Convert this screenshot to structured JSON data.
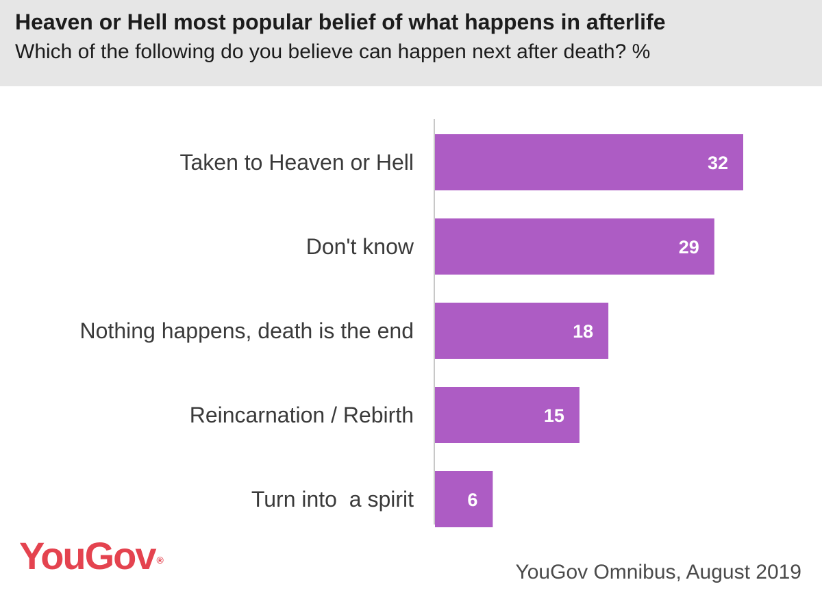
{
  "header": {
    "title": "Heaven or Hell most popular belief of what happens in afterlife",
    "subtitle": "Which of the following do you believe can happen next after death? %"
  },
  "colors": {
    "bar": "#ad5cc4",
    "header_background": "#e6e6e6",
    "logo": "#e4434f",
    "axis_line": "#c8c8c8"
  },
  "chart_data": {
    "type": "bar",
    "orientation": "horizontal",
    "categories": [
      "Taken to Heaven or Hell",
      "Don't know",
      "Nothing happens, death is the end",
      "Reincarnation / Rebirth",
      "Turn into  a spirit"
    ],
    "values": [
      32,
      29,
      18,
      15,
      6
    ],
    "title": "Heaven or Hell most popular belief of what happens in afterlife",
    "subtitle": "Which of the following do you believe can happen next after death? %",
    "xlim": [
      0,
      32
    ],
    "grid": false,
    "data_labels": true
  },
  "footer": {
    "logo_text": "YouGov",
    "logo_mark": "®",
    "source": "YouGov Omnibus, August 2019"
  }
}
